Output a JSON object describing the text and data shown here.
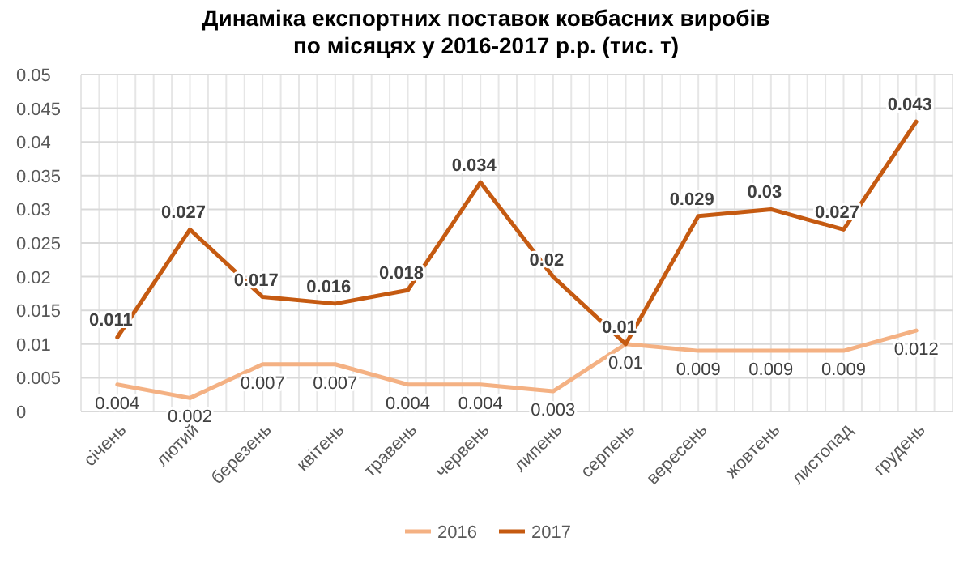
{
  "chart_data": {
    "type": "line",
    "title": "Динаміка експортних поставок ковбасних виробів\nпо місяцях у 2016-2017 р.р. (тис. т)",
    "categories": [
      "січень",
      "лютий",
      "березень",
      "квітень",
      "травень",
      "червень",
      "липень",
      "серпень",
      "вересень",
      "жовтень",
      "листопад",
      "грудень"
    ],
    "series": [
      {
        "name": "2016",
        "color": "#f4b183",
        "values": [
          0.004,
          0.002,
          0.007,
          0.007,
          0.004,
          0.004,
          0.003,
          0.01,
          0.009,
          0.009,
          0.009,
          0.012
        ]
      },
      {
        "name": "2017",
        "color": "#c55a11",
        "values": [
          0.011,
          0.027,
          0.017,
          0.016,
          0.018,
          0.034,
          0.02,
          0.01,
          0.029,
          0.03,
          0.027,
          0.043
        ]
      }
    ],
    "ylim": [
      0,
      0.05
    ],
    "yticks": [
      0,
      0.005,
      0.01,
      0.015,
      0.02,
      0.025,
      0.03,
      0.035,
      0.04,
      0.045,
      0.05
    ],
    "data_labels": true,
    "grid": true,
    "legend": "bottom",
    "marker": "none",
    "line_style": "solid"
  }
}
